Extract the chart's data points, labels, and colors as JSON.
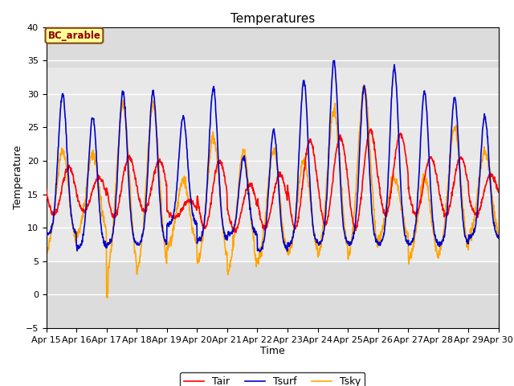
{
  "title": "Temperatures",
  "xlabel": "Time",
  "ylabel": "Temperature",
  "annotation": "BC_arable",
  "xlim_days": [
    15,
    30
  ],
  "ylim": [
    -5,
    40
  ],
  "yticks": [
    -5,
    0,
    5,
    10,
    15,
    20,
    25,
    30,
    35,
    40
  ],
  "xtick_labels": [
    "Apr 15",
    "Apr 16",
    "Apr 17",
    "Apr 18",
    "Apr 19",
    "Apr 20",
    "Apr 21",
    "Apr 22",
    "Apr 23",
    "Apr 24",
    "Apr 25",
    "Apr 26",
    "Apr 27",
    "Apr 28",
    "Apr 29",
    "Apr 30"
  ],
  "line_colors": {
    "Tair": "#ff0000",
    "Tsurf": "#0000cc",
    "Tsky": "#ffa500"
  },
  "line_widths": {
    "Tair": 1.2,
    "Tsurf": 1.2,
    "Tsky": 1.2
  },
  "fig_bg_color": "#ffffff",
  "plot_bg_color": "#dcdcdc",
  "grid_color": "#ffffff",
  "band_color": "#e8e8e8",
  "band_ylim": [
    5,
    34
  ],
  "title_fontsize": 11,
  "axis_label_fontsize": 9,
  "tick_fontsize": 8,
  "legend_fontsize": 9,
  "tsurf_peaks": [
    30,
    26.5,
    30.4,
    30.3,
    26.5,
    31.0,
    20.5,
    24.5,
    32.0,
    35.0,
    31.0,
    34.0,
    30.3,
    29.5,
    26.5
  ],
  "tsurf_mins": [
    9.0,
    7.0,
    7.5,
    7.5,
    10.5,
    8.0,
    9.0,
    6.5,
    7.5,
    7.5,
    7.5,
    7.5,
    7.5,
    7.5,
    8.5
  ],
  "tair_peaks": [
    19.0,
    17.5,
    20.5,
    20.0,
    14.0,
    20.0,
    16.5,
    18.0,
    23.0,
    23.5,
    24.5,
    24.0,
    20.5,
    20.5,
    18.0
  ],
  "tair_mins": [
    12.0,
    12.5,
    11.5,
    12.5,
    11.5,
    10.0,
    9.5,
    10.0,
    10.0,
    10.5,
    10.0,
    12.0,
    12.0,
    12.0,
    12.0
  ],
  "tsky_peaks": [
    21.5,
    21.0,
    28.5,
    28.5,
    17.0,
    23.5,
    21.5,
    21.5,
    20.0,
    27.5,
    31.0,
    17.5,
    17.5,
    25.0,
    21.5
  ],
  "tsky_mins": [
    6.0,
    8.5,
    2.5,
    2.5,
    6.5,
    4.0,
    2.5,
    4.5,
    5.5,
    5.0,
    4.5,
    8.0,
    4.5,
    5.0,
    8.0
  ]
}
